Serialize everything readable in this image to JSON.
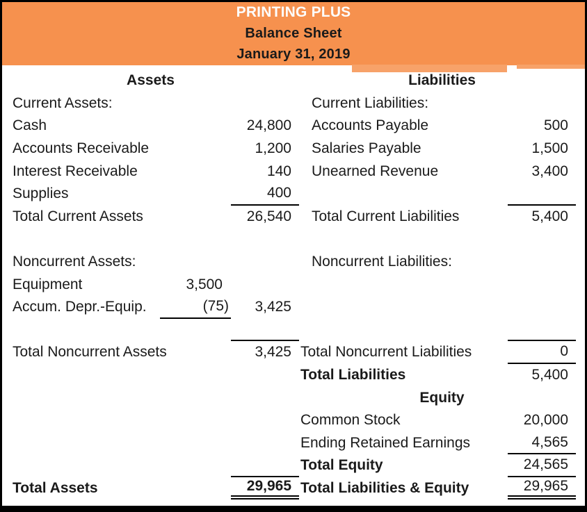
{
  "header": {
    "company": "PRINTING PLUS",
    "report": "Balance Sheet",
    "date": "January 31, 2019",
    "bg_color": "#f6914e",
    "strip_color": "#f7a269",
    "company_color": "#fdfdfd",
    "text_color": "#1a1a1a"
  },
  "assets": {
    "section_title": "Assets",
    "current_label": "Current Assets:",
    "items": [
      {
        "label": "Cash",
        "amount": "24,800"
      },
      {
        "label": "Accounts Receivable",
        "amount": "1,200"
      },
      {
        "label": "Interest Receivable",
        "amount": "140"
      },
      {
        "label": "Supplies",
        "amount": "400"
      }
    ],
    "total_current": {
      "label": "Total Current Assets",
      "amount": "26,540"
    },
    "noncurrent_label": "Noncurrent Assets:",
    "equipment": {
      "label": "Equipment",
      "amount": "3,500"
    },
    "accum_depr": {
      "label": "Accum. Depr.-Equip.",
      "amount": "(75)",
      "net": "3,425"
    },
    "total_noncurrent": {
      "label": "Total Noncurrent Assets",
      "amount": "3,425"
    },
    "total": {
      "label": "Total Assets",
      "amount": "29,965"
    }
  },
  "liabilities": {
    "section_title": "Liabilities",
    "current_label": "Current Liabilities:",
    "items": [
      {
        "label": "Accounts Payable",
        "amount": "500"
      },
      {
        "label": "Salaries Payable",
        "amount": "1,500"
      },
      {
        "label": "Unearned Revenue",
        "amount": "3,400"
      }
    ],
    "total_current": {
      "label": "Total Current Liabilities",
      "amount": "5,400"
    },
    "noncurrent_label": "Noncurrent Liabilities:",
    "total_noncurrent": {
      "label": "Total Noncurrent Liabilities",
      "amount": "0"
    },
    "total": {
      "label": "Total Liabilities",
      "amount": "5,400"
    }
  },
  "equity": {
    "section_title": "Equity",
    "items": [
      {
        "label": "Common Stock",
        "amount": "20,000"
      },
      {
        "label": "Ending Retained Earnings",
        "amount": "4,565"
      }
    ],
    "total": {
      "label": "Total Equity",
      "amount": "24,565"
    },
    "total_liab_equity": {
      "label": "Total Liabilities & Equity",
      "amount": "29,965"
    }
  }
}
